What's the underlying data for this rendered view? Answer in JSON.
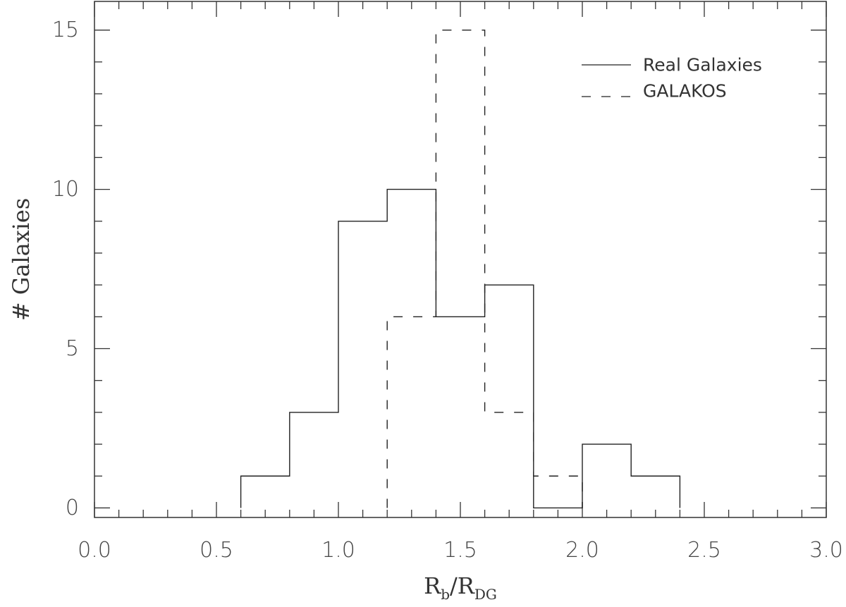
{
  "chart_data": {
    "type": "histogram",
    "title": "",
    "xlabel": {
      "main": "R",
      "sub1": "b",
      "sep": "/R",
      "sub2": "DG"
    },
    "ylabel": "# Galaxies",
    "xlim": [
      0.0,
      3.0
    ],
    "ylim": [
      -0.3,
      15.9
    ],
    "x_ticks": [
      "0.0",
      "0.5",
      "1.0",
      "1.5",
      "2.0",
      "2.5",
      "3.0"
    ],
    "y_ticks": [
      "0",
      "5",
      "10",
      "15"
    ],
    "bin_edges": [
      0.0,
      0.2,
      0.4,
      0.6,
      0.8,
      1.0,
      1.2,
      1.4,
      1.6,
      1.8,
      2.0,
      2.2,
      2.4,
      2.6,
      2.8,
      3.0
    ],
    "legend_position": "top-right",
    "grid": false,
    "series": [
      {
        "name": "Real Galaxies",
        "style": "solid",
        "counts": [
          0,
          0,
          0,
          1,
          3,
          9,
          10,
          6,
          7,
          0,
          2,
          1,
          0,
          0,
          0
        ]
      },
      {
        "name": "GALAKOS",
        "style": "dashed",
        "counts": [
          0,
          0,
          0,
          0,
          0,
          0,
          6,
          15,
          3,
          1,
          0,
          0,
          0,
          0,
          0
        ]
      }
    ]
  }
}
